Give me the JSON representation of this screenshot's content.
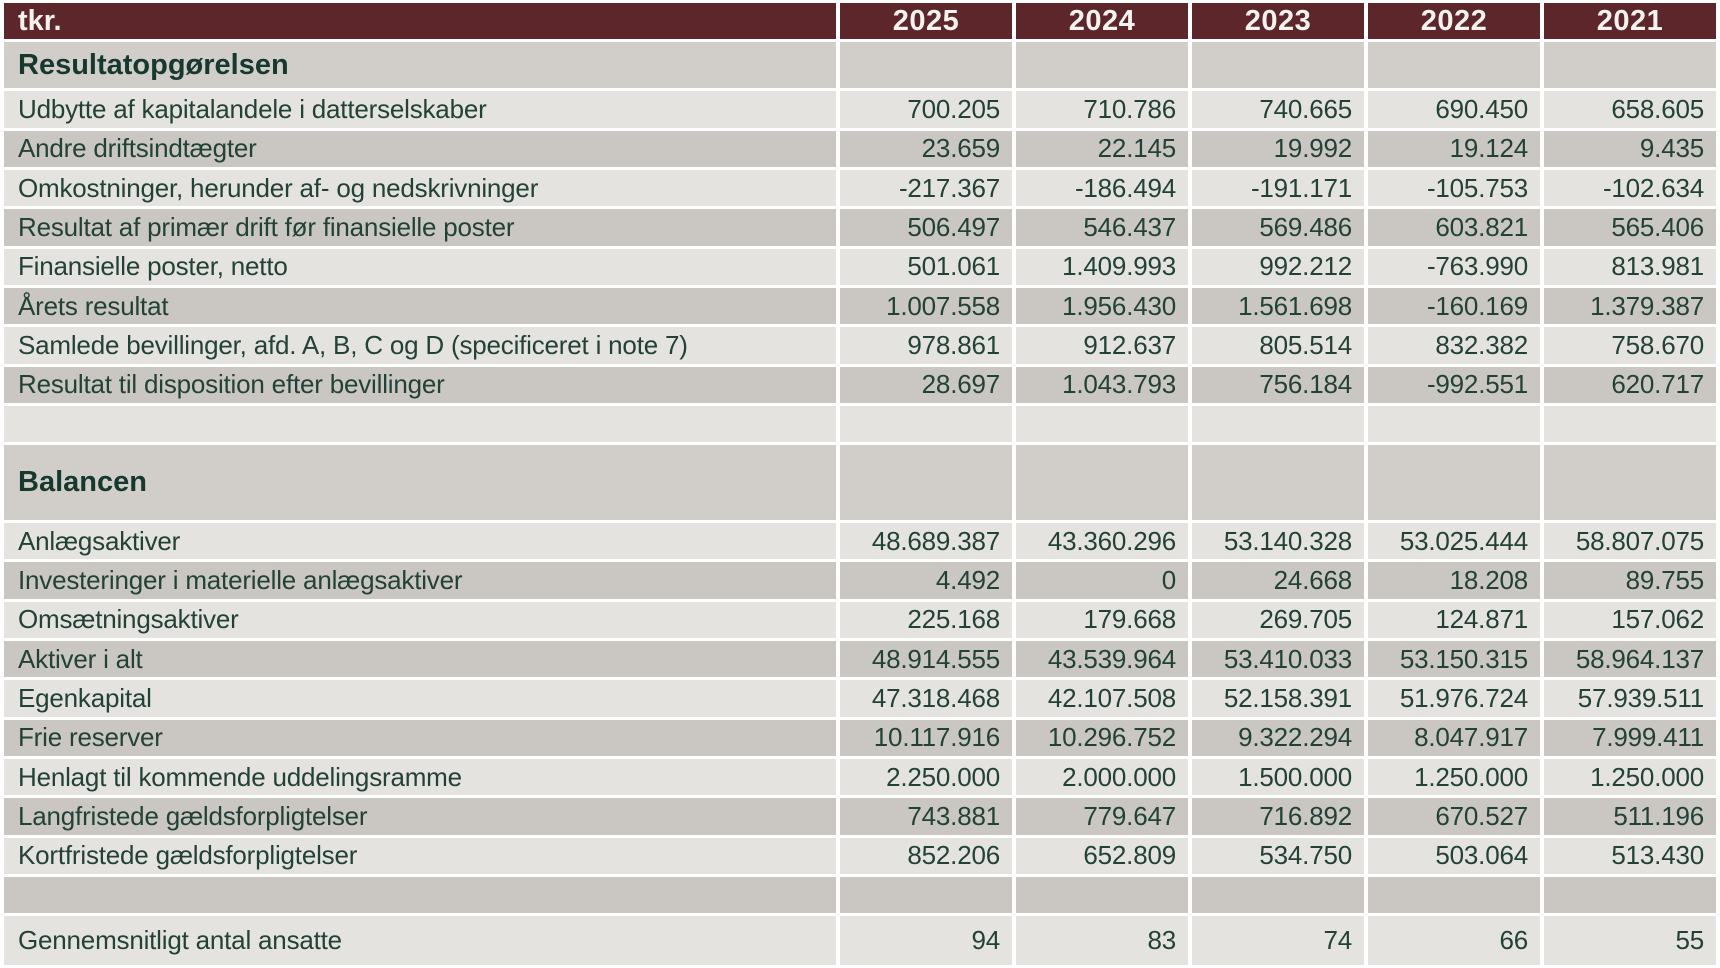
{
  "table": {
    "unit_label": "tkr.",
    "years": [
      "2025",
      "2024",
      "2023",
      "2022",
      "2021"
    ],
    "sections": [
      {
        "title": "Resultatopgørelsen",
        "rows": [
          {
            "label": "Udbytte af kapitalandele i datterselskaber",
            "values": [
              "700.205",
              "710.786",
              "740.665",
              "690.450",
              "658.605"
            ]
          },
          {
            "label": "Andre driftsindtægter",
            "values": [
              "23.659",
              "22.145",
              "19.992",
              "19.124",
              "9.435"
            ]
          },
          {
            "label": "Omkostninger, herunder af- og nedskrivninger",
            "values": [
              "-217.367",
              "-186.494",
              "-191.171",
              "-105.753",
              "-102.634"
            ]
          },
          {
            "label": "Resultat af primær drift før finansielle poster",
            "values": [
              "506.497",
              "546.437",
              "569.486",
              "603.821",
              "565.406"
            ]
          },
          {
            "label": "Finansielle poster, netto",
            "values": [
              "501.061",
              "1.409.993",
              "992.212",
              "-763.990",
              "813.981"
            ]
          },
          {
            "label": "Årets resultat",
            "values": [
              "1.007.558",
              "1.956.430",
              "1.561.698",
              "-160.169",
              "1.379.387"
            ]
          },
          {
            "label": "Samlede bevillinger, afd. A, B, C og D (specificeret i note 7)",
            "values": [
              "978.861",
              "912.637",
              "805.514",
              "832.382",
              "758.670"
            ]
          },
          {
            "label": "Resultat til disposition efter bevillinger",
            "values": [
              "28.697",
              "1.043.793",
              "756.184",
              "-992.551",
              "620.717"
            ]
          }
        ]
      },
      {
        "title": "Balancen",
        "rows": [
          {
            "label": "Anlægsaktiver",
            "values": [
              "48.689.387",
              "43.360.296",
              "53.140.328",
              "53.025.444",
              "58.807.075"
            ]
          },
          {
            "label": "Investeringer i materielle anlægsaktiver",
            "values": [
              "4.492",
              "0",
              "24.668",
              "18.208",
              "89.755"
            ]
          },
          {
            "label": "Omsætningsaktiver",
            "values": [
              "225.168",
              "179.668",
              "269.705",
              "124.871",
              "157.062"
            ]
          },
          {
            "label": "Aktiver i alt",
            "values": [
              "48.914.555",
              "43.539.964",
              "53.410.033",
              "53.150.315",
              "58.964.137"
            ]
          },
          {
            "label": "Egenkapital",
            "values": [
              "47.318.468",
              "42.107.508",
              "52.158.391",
              "51.976.724",
              "57.939.511"
            ]
          },
          {
            "label": "Frie reserver",
            "values": [
              "10.117.916",
              "10.296.752",
              "9.322.294",
              "8.047.917",
              "7.999.411"
            ]
          },
          {
            "label": "Henlagt til kommende uddelingsramme",
            "values": [
              "2.250.000",
              "2.000.000",
              "1.500.000",
              "1.250.000",
              "1.250.000"
            ]
          },
          {
            "label": "Langfristede gældsforpligtelser",
            "values": [
              "743.881",
              "779.647",
              "716.892",
              "670.527",
              "511.196"
            ]
          },
          {
            "label": "Kortfristede gældsforpligtelser",
            "values": [
              "852.206",
              "652.809",
              "534.750",
              "503.064",
              "513.430"
            ]
          }
        ]
      }
    ],
    "footer_row": {
      "label": "Gennemsnitligt antal ansatte",
      "values": [
        "94",
        "83",
        "74",
        "66",
        "55"
      ]
    },
    "colors": {
      "header_background": "#5d262b",
      "header_text": "#f7f3f1",
      "row_light": "#e5e3e0",
      "row_dark": "#cac7c2",
      "section_row": "#d1cec9",
      "body_text": "#234237",
      "section_text": "#17382e",
      "grid_gap": "#ffffff"
    }
  }
}
